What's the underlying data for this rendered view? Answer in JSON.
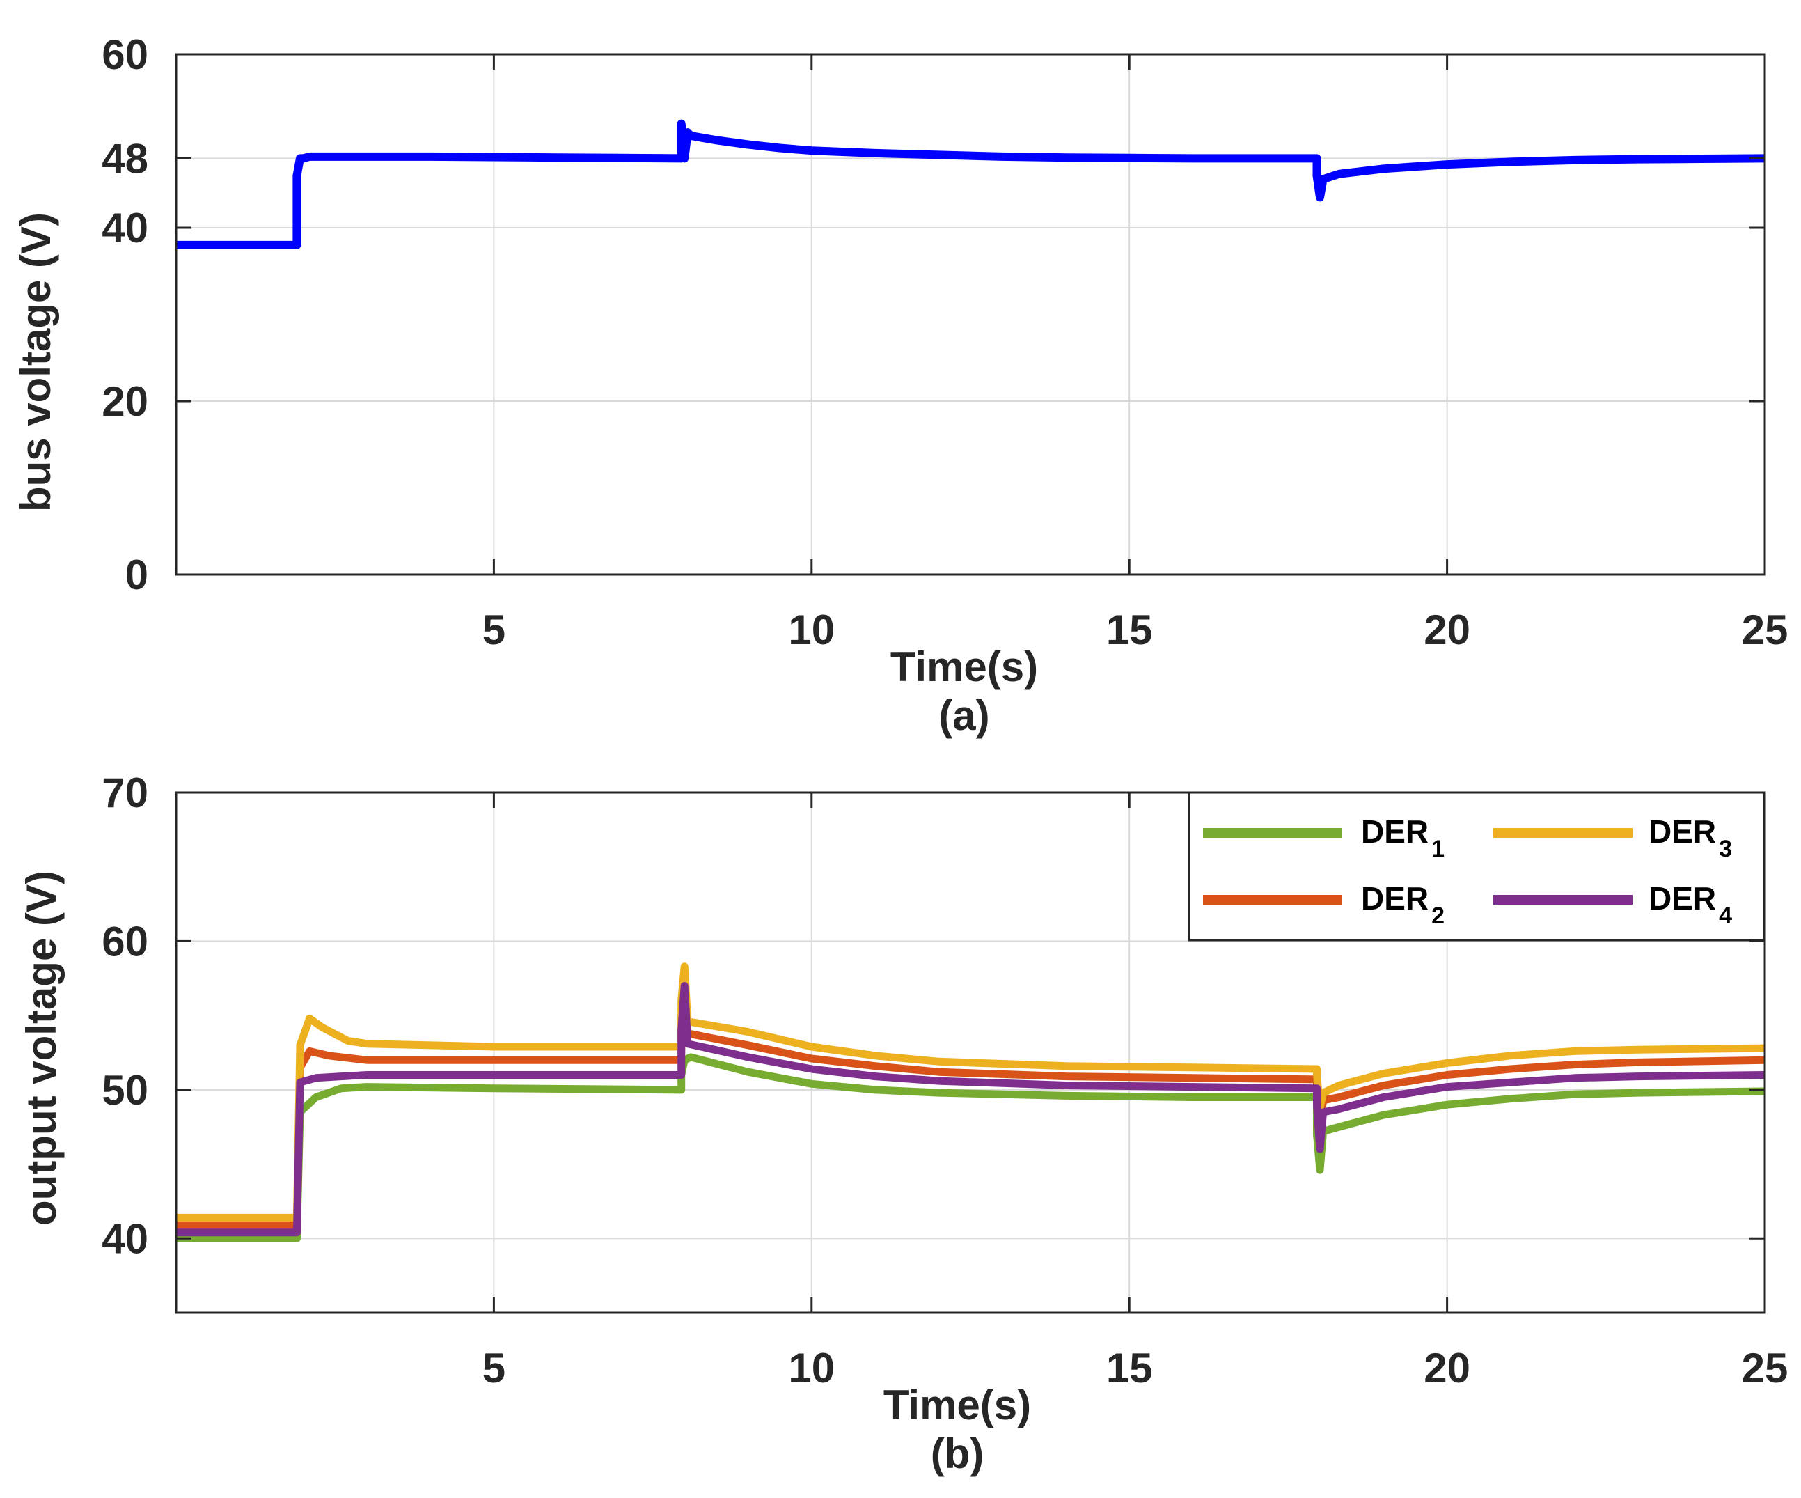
{
  "chart_data": [
    {
      "type": "line",
      "panel_label": "(a)",
      "xlabel": "Time(s)",
      "ylabel": "bus voltage (V)",
      "xlim": [
        0,
        25
      ],
      "ylim": [
        0,
        60
      ],
      "xticks": [
        5,
        10,
        15,
        20,
        25
      ],
      "yticks": [
        0,
        20,
        40,
        48,
        60
      ],
      "grid": true,
      "series": [
        {
          "name": "bus voltage",
          "color": "#0000ff",
          "points": [
            [
              0,
              38
            ],
            [
              1.9,
              38
            ],
            [
              1.9,
              46
            ],
            [
              1.95,
              48
            ],
            [
              2.0,
              48
            ],
            [
              2.1,
              48.2
            ],
            [
              4,
              48.2
            ],
            [
              6,
              48.1
            ],
            [
              7.95,
              48
            ],
            [
              7.95,
              52
            ],
            [
              8.0,
              48
            ],
            [
              8.05,
              51
            ],
            [
              8.1,
              50.6
            ],
            [
              8.5,
              50.1
            ],
            [
              9,
              49.6
            ],
            [
              9.5,
              49.2
            ],
            [
              10,
              48.9
            ],
            [
              11,
              48.6
            ],
            [
              12,
              48.4
            ],
            [
              13,
              48.2
            ],
            [
              14,
              48.1
            ],
            [
              15,
              48.05
            ],
            [
              16,
              48.0
            ],
            [
              17,
              48.0
            ],
            [
              17.95,
              48.0
            ],
            [
              17.95,
              46
            ],
            [
              18.0,
              43.5
            ],
            [
              18.05,
              45.6
            ],
            [
              18.3,
              46.2
            ],
            [
              19,
              46.8
            ],
            [
              20,
              47.3
            ],
            [
              21,
              47.6
            ],
            [
              22,
              47.8
            ],
            [
              23,
              47.9
            ],
            [
              24,
              47.95
            ],
            [
              25,
              48
            ]
          ]
        }
      ]
    },
    {
      "type": "line",
      "panel_label": "(b)",
      "xlabel": "Time(s)",
      "ylabel": "output voltage (V)",
      "xlim": [
        0,
        25
      ],
      "ylim": [
        35,
        70
      ],
      "xticks": [
        5,
        10,
        15,
        20,
        25
      ],
      "yticks": [
        40,
        50,
        60,
        70
      ],
      "grid": true,
      "legend": {
        "position": "top-right",
        "columns": 2
      },
      "series": [
        {
          "name": "DER",
          "subscript": "1",
          "color": "#77ac30",
          "points": [
            [
              0,
              40.0
            ],
            [
              1.9,
              40.0
            ],
            [
              1.95,
              48.5
            ],
            [
              2.2,
              49.5
            ],
            [
              2.6,
              50.1
            ],
            [
              3,
              50.2
            ],
            [
              5,
              50.1
            ],
            [
              7.95,
              50.0
            ],
            [
              7.95,
              51
            ],
            [
              8.0,
              52
            ],
            [
              8.1,
              52.2
            ],
            [
              9,
              51.2
            ],
            [
              10,
              50.4
            ],
            [
              11,
              50.0
            ],
            [
              12,
              49.8
            ],
            [
              14,
              49.6
            ],
            [
              16,
              49.5
            ],
            [
              17.95,
              49.5
            ],
            [
              17.95,
              47
            ],
            [
              18.0,
              44.6
            ],
            [
              18.05,
              47.2
            ],
            [
              18.3,
              47.5
            ],
            [
              19,
              48.3
            ],
            [
              20,
              49.0
            ],
            [
              21,
              49.4
            ],
            [
              22,
              49.7
            ],
            [
              23,
              49.8
            ],
            [
              25,
              49.9
            ]
          ]
        },
        {
          "name": "DER",
          "subscript": "2",
          "color": "#d95319",
          "points": [
            [
              0,
              40.9
            ],
            [
              1.9,
              40.9
            ],
            [
              1.95,
              51.5
            ],
            [
              2.1,
              52.6
            ],
            [
              2.4,
              52.3
            ],
            [
              3,
              52.0
            ],
            [
              5,
              52.0
            ],
            [
              7.95,
              52.0
            ],
            [
              7.95,
              55
            ],
            [
              8.0,
              56.5
            ],
            [
              8.05,
              53.8
            ],
            [
              9,
              53.0
            ],
            [
              10,
              52.1
            ],
            [
              11,
              51.6
            ],
            [
              12,
              51.2
            ],
            [
              14,
              50.9
            ],
            [
              16,
              50.8
            ],
            [
              17.95,
              50.7
            ],
            [
              17.95,
              50
            ],
            [
              18.0,
              47.5
            ],
            [
              18.05,
              49.3
            ],
            [
              18.3,
              49.5
            ],
            [
              19,
              50.3
            ],
            [
              20,
              51.0
            ],
            [
              21,
              51.4
            ],
            [
              22,
              51.7
            ],
            [
              23,
              51.85
            ],
            [
              25,
              52.0
            ]
          ]
        },
        {
          "name": "DER",
          "subscript": "3",
          "color": "#edb120",
          "points": [
            [
              0,
              41.4
            ],
            [
              1.9,
              41.4
            ],
            [
              1.95,
              53
            ],
            [
              2.1,
              54.8
            ],
            [
              2.3,
              54.2
            ],
            [
              2.7,
              53.3
            ],
            [
              3,
              53.1
            ],
            [
              5,
              52.9
            ],
            [
              7.95,
              52.9
            ],
            [
              7.95,
              56
            ],
            [
              8.0,
              58.3
            ],
            [
              8.05,
              54.6
            ],
            [
              9,
              53.9
            ],
            [
              10,
              52.9
            ],
            [
              11,
              52.3
            ],
            [
              12,
              51.9
            ],
            [
              14,
              51.6
            ],
            [
              16,
              51.5
            ],
            [
              17.95,
              51.4
            ],
            [
              17.95,
              51
            ],
            [
              18.0,
              48.8
            ],
            [
              18.05,
              49.8
            ],
            [
              18.3,
              50.3
            ],
            [
              19,
              51.1
            ],
            [
              20,
              51.8
            ],
            [
              21,
              52.3
            ],
            [
              22,
              52.6
            ],
            [
              23,
              52.7
            ],
            [
              25,
              52.8
            ]
          ]
        },
        {
          "name": "DER",
          "subscript": "4",
          "color": "#7e2f8e",
          "points": [
            [
              0,
              40.4
            ],
            [
              1.9,
              40.4
            ],
            [
              1.95,
              50.5
            ],
            [
              2.2,
              50.8
            ],
            [
              3,
              51.0
            ],
            [
              5,
              51.0
            ],
            [
              7.95,
              51.0
            ],
            [
              7.95,
              54
            ],
            [
              8.0,
              57.0
            ],
            [
              8.05,
              53.1
            ],
            [
              9,
              52.2
            ],
            [
              10,
              51.4
            ],
            [
              11,
              50.9
            ],
            [
              12,
              50.6
            ],
            [
              14,
              50.3
            ],
            [
              16,
              50.2
            ],
            [
              17.95,
              50.1
            ],
            [
              17.95,
              49
            ],
            [
              18.0,
              46.0
            ],
            [
              18.05,
              48.5
            ],
            [
              18.3,
              48.7
            ],
            [
              19,
              49.5
            ],
            [
              20,
              50.2
            ],
            [
              21,
              50.5
            ],
            [
              22,
              50.8
            ],
            [
              23,
              50.9
            ],
            [
              25,
              51.0
            ]
          ]
        }
      ]
    }
  ]
}
